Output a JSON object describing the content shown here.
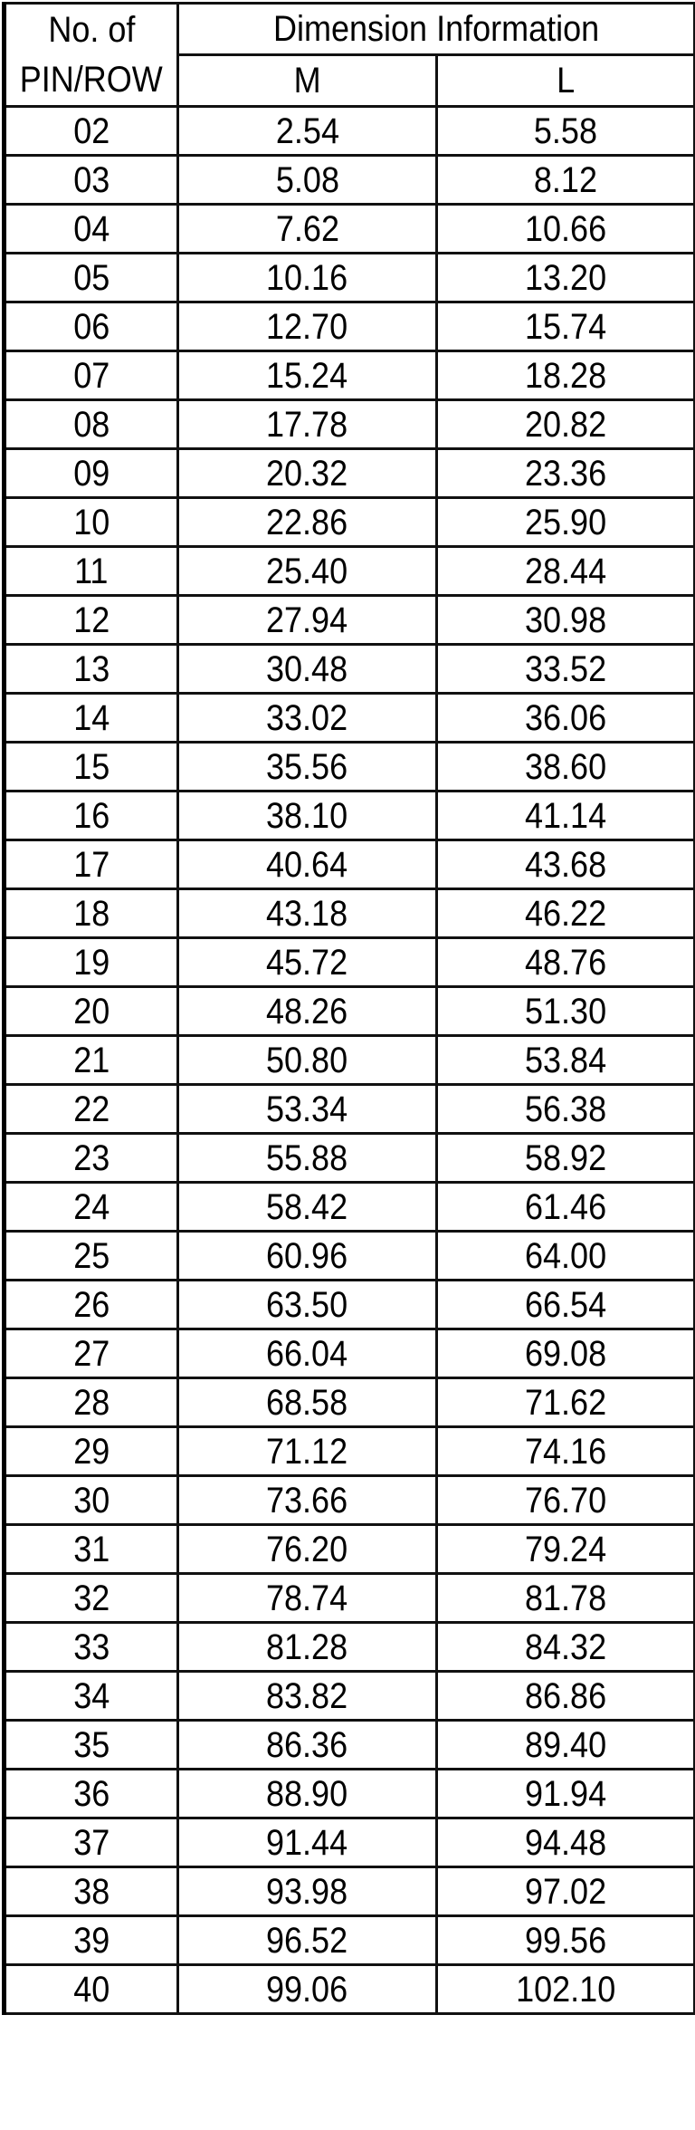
{
  "header": {
    "col1_line1": "No.  of",
    "col1_line2": "PIN/ROW",
    "group": "Dimension  Information",
    "m": "M",
    "l": "L"
  },
  "rows": [
    [
      "02",
      "2.54",
      "5.58"
    ],
    [
      "03",
      "5.08",
      "8.12"
    ],
    [
      "04",
      "7.62",
      "10.66"
    ],
    [
      "05",
      "10.16",
      "13.20"
    ],
    [
      "06",
      "12.70",
      "15.74"
    ],
    [
      "07",
      "15.24",
      "18.28"
    ],
    [
      "08",
      "17.78",
      "20.82"
    ],
    [
      "09",
      "20.32",
      "23.36"
    ],
    [
      "10",
      "22.86",
      "25.90"
    ],
    [
      "11",
      "25.40",
      "28.44"
    ],
    [
      "12",
      "27.94",
      "30.98"
    ],
    [
      "13",
      "30.48",
      "33.52"
    ],
    [
      "14",
      "33.02",
      "36.06"
    ],
    [
      "15",
      "35.56",
      "38.60"
    ],
    [
      "16",
      "38.10",
      "41.14"
    ],
    [
      "17",
      "40.64",
      "43.68"
    ],
    [
      "18",
      "43.18",
      "46.22"
    ],
    [
      "19",
      "45.72",
      "48.76"
    ],
    [
      "20",
      "48.26",
      "51.30"
    ],
    [
      "21",
      "50.80",
      "53.84"
    ],
    [
      "22",
      "53.34",
      "56.38"
    ],
    [
      "23",
      "55.88",
      "58.92"
    ],
    [
      "24",
      "58.42",
      "61.46"
    ],
    [
      "25",
      "60.96",
      "64.00"
    ],
    [
      "26",
      "63.50",
      "66.54"
    ],
    [
      "27",
      "66.04",
      "69.08"
    ],
    [
      "28",
      "68.58",
      "71.62"
    ],
    [
      "29",
      "71.12",
      "74.16"
    ],
    [
      "30",
      "73.66",
      "76.70"
    ],
    [
      "31",
      "76.20",
      "79.24"
    ],
    [
      "32",
      "78.74",
      "81.78"
    ],
    [
      "33",
      "81.28",
      "84.32"
    ],
    [
      "34",
      "83.82",
      "86.86"
    ],
    [
      "35",
      "86.36",
      "89.40"
    ],
    [
      "36",
      "88.90",
      "91.94"
    ],
    [
      "37",
      "91.44",
      "94.48"
    ],
    [
      "38",
      "93.98",
      "97.02"
    ],
    [
      "39",
      "96.52",
      "99.56"
    ],
    [
      "40",
      "99.06",
      "102.10"
    ]
  ]
}
